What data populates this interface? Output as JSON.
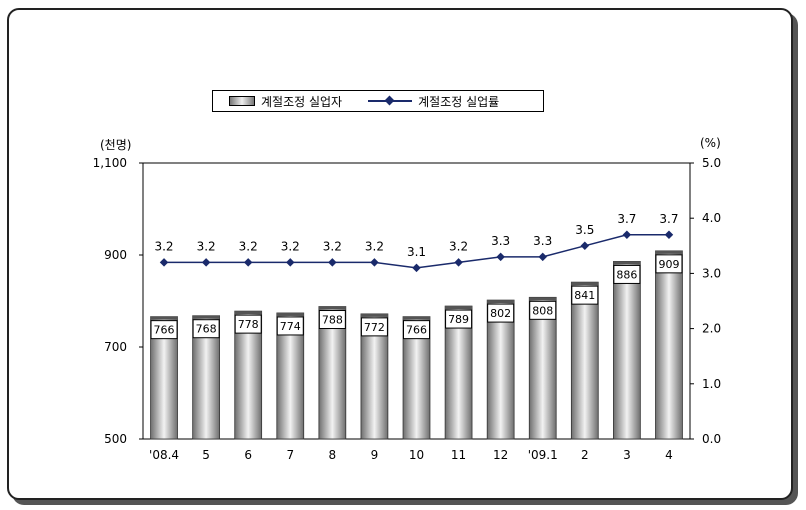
{
  "legend": {
    "bar_label": "계절조정 실업자",
    "line_label": "계절조정 실업률"
  },
  "units": {
    "left": "(천명)",
    "right": "(%)"
  },
  "chart_data": {
    "type": "bar",
    "categories": [
      "'08.4",
      "5",
      "6",
      "7",
      "8",
      "9",
      "10",
      "11",
      "12",
      "'09.1",
      "2",
      "3",
      "4"
    ],
    "series": [
      {
        "name": "계절조정 실업자",
        "type": "bar",
        "axis": "left",
        "values": [
          766,
          768,
          778,
          774,
          788,
          772,
          766,
          789,
          802,
          808,
          841,
          886,
          909
        ]
      },
      {
        "name": "계절조정 실업률",
        "type": "line",
        "axis": "right",
        "values": [
          3.2,
          3.2,
          3.2,
          3.2,
          3.2,
          3.2,
          3.1,
          3.2,
          3.3,
          3.3,
          3.5,
          3.7,
          3.7
        ]
      }
    ],
    "y_left": {
      "min": 500,
      "max": 1100,
      "ticks": [
        "500",
        "700",
        "900",
        "1,100"
      ],
      "tick_values": [
        500,
        700,
        900,
        1100
      ]
    },
    "y_right": {
      "min": 0,
      "max": 5,
      "ticks": [
        "0.0",
        "1.0",
        "2.0",
        "3.0",
        "4.0",
        "5.0"
      ],
      "tick_values": [
        0,
        1,
        2,
        3,
        4,
        5
      ]
    },
    "grid": false,
    "legend_position": "top",
    "colors": {
      "bar_dark": "#6e6e6e",
      "bar_light": "#f2f2f2",
      "line": "#1a2a6b"
    }
  }
}
